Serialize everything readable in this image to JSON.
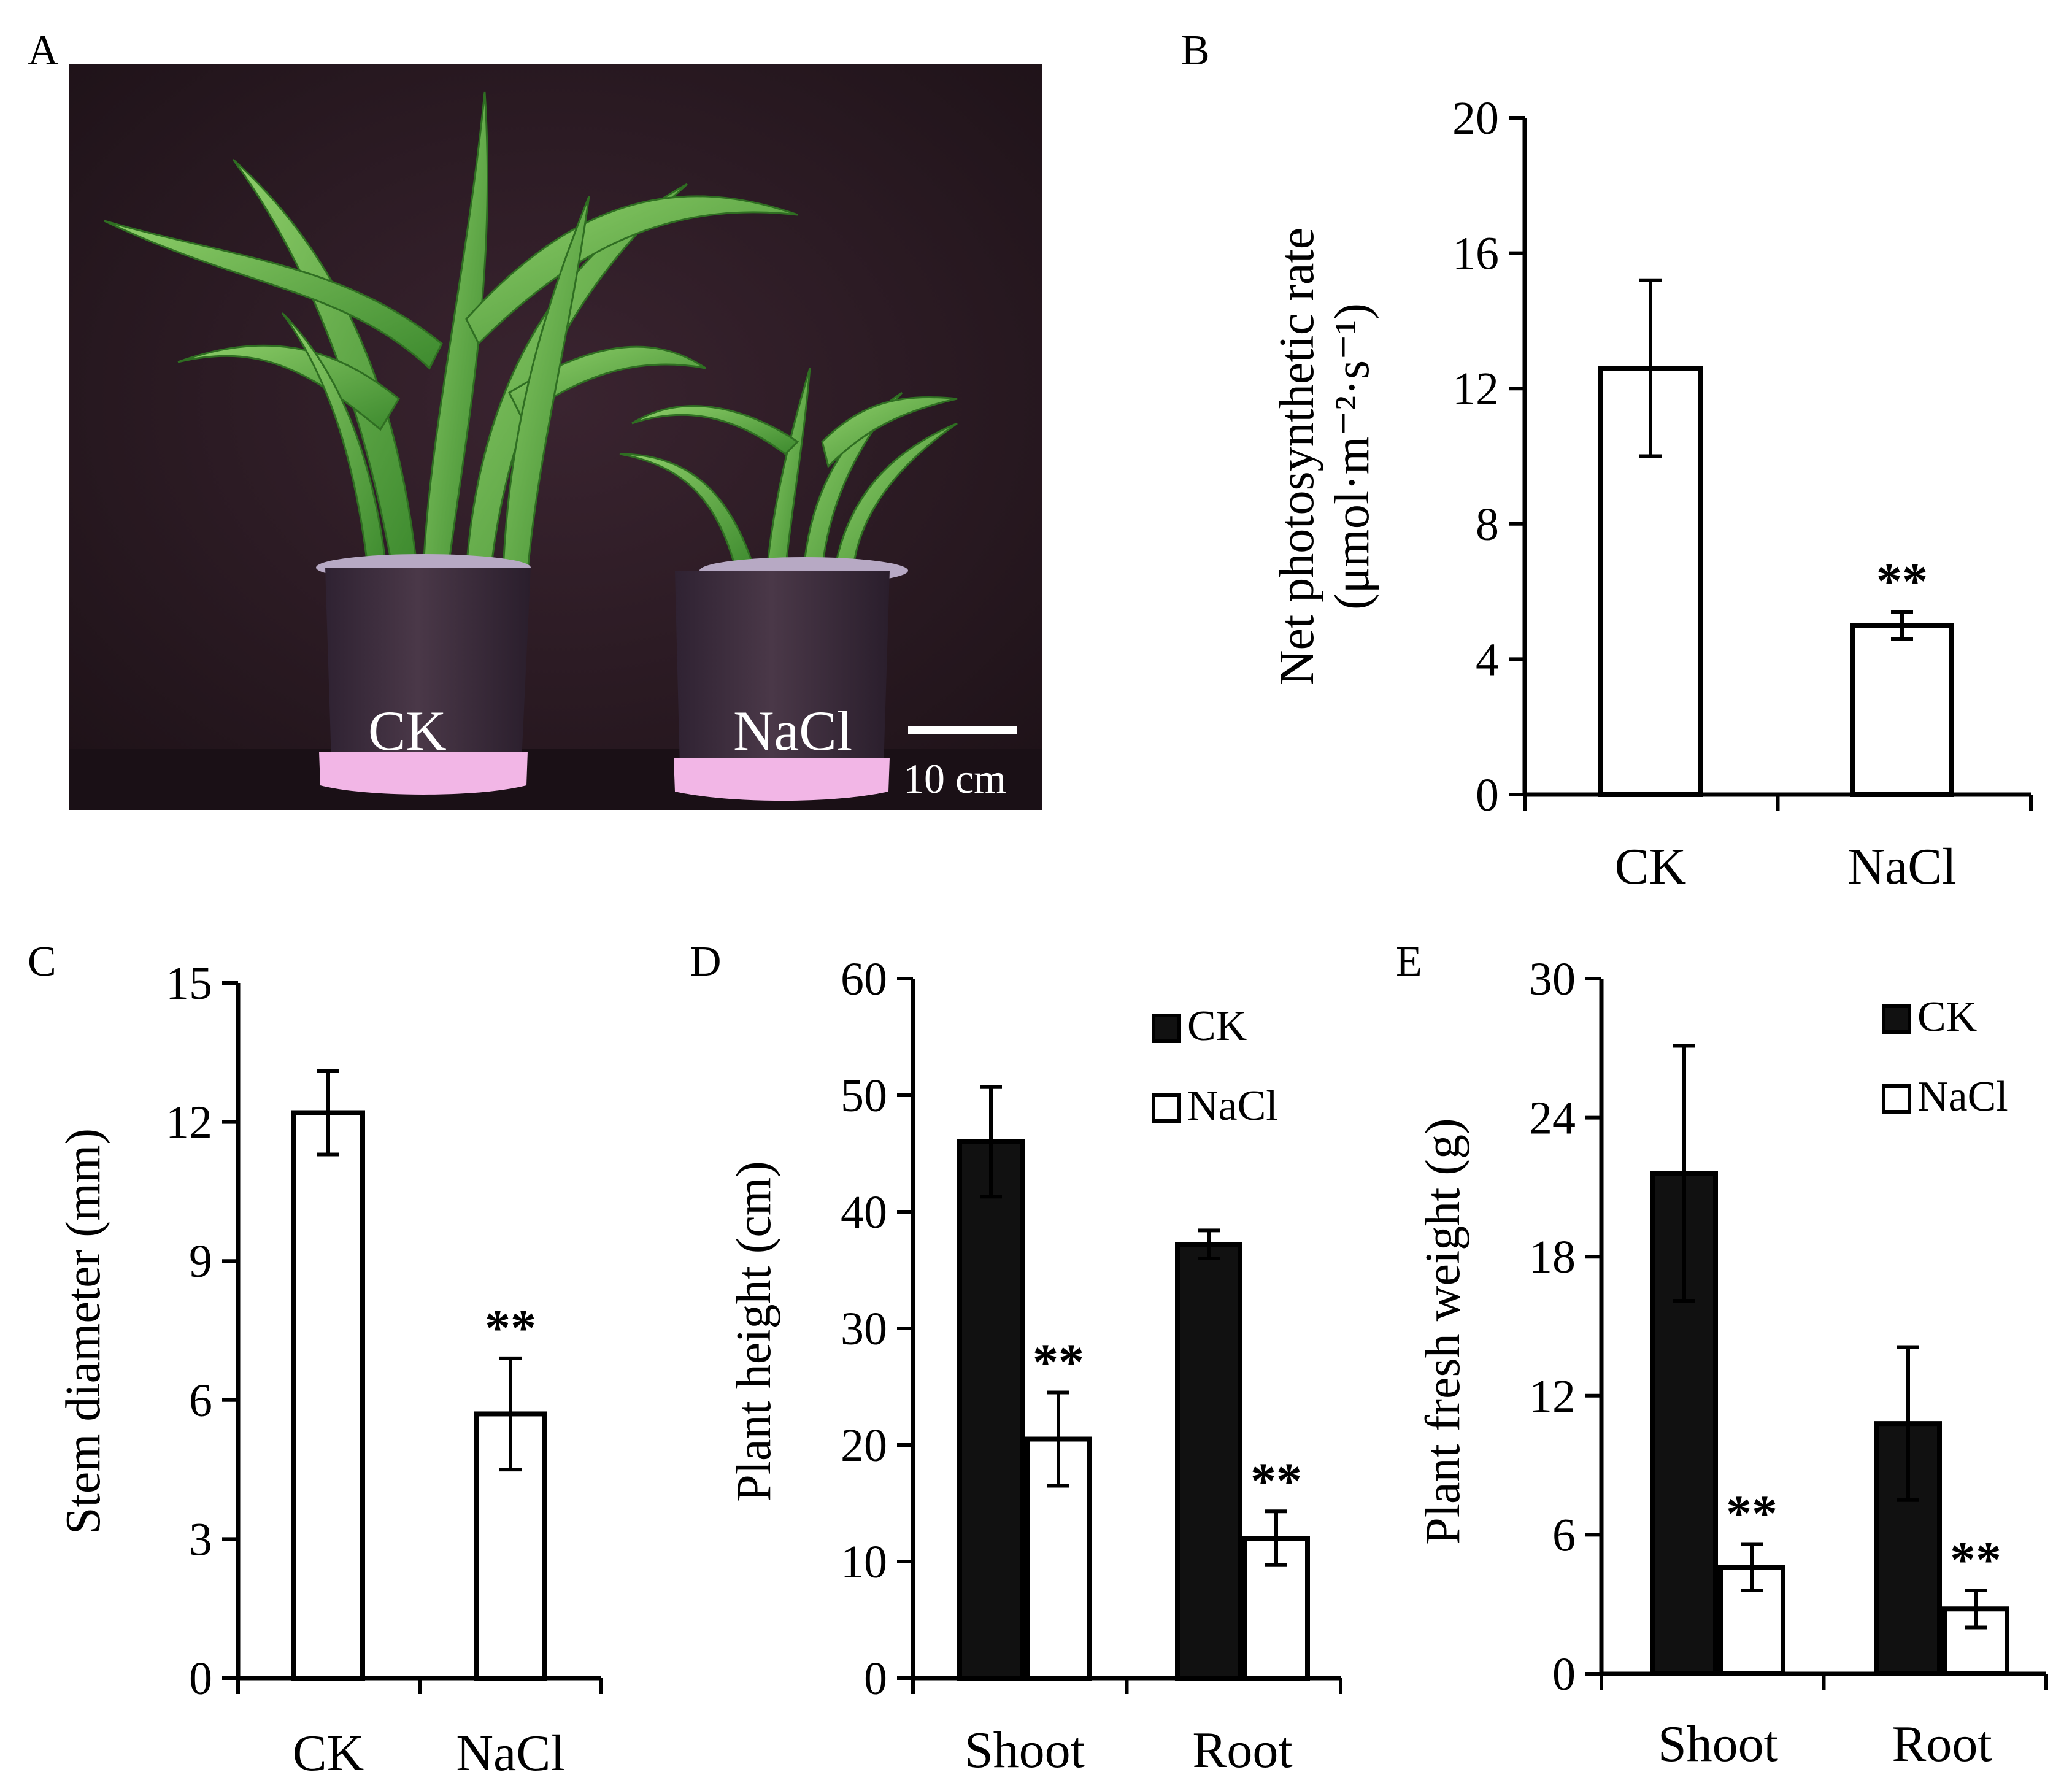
{
  "figure": {
    "panel_labels": [
      "A",
      "B",
      "C",
      "D",
      "E"
    ]
  },
  "photo": {
    "label_ck": "CK",
    "label_nacl": "NaCl",
    "scale_bar": "10 cm"
  },
  "chart_data": [
    {
      "panel": "B",
      "type": "bar",
      "ylabel_line1": "Net photosynthetic rate",
      "ylabel_line2": "(μmol·m⁻²·s⁻¹)",
      "categories": [
        "CK",
        "NaCl"
      ],
      "series": [
        {
          "name": "value",
          "values": [
            12.6,
            5.0
          ],
          "errors": [
            2.6,
            0.4
          ]
        }
      ],
      "significance": [
        "",
        "**"
      ],
      "ylim": [
        0,
        20
      ],
      "yticks": [
        "0",
        "4",
        "8",
        "12",
        "16",
        "20"
      ],
      "legend": []
    },
    {
      "panel": "C",
      "type": "bar",
      "ylabel_line1": "Stem diameter (mm)",
      "categories": [
        "CK",
        "NaCl"
      ],
      "series": [
        {
          "name": "value",
          "values": [
            12.2,
            5.7
          ],
          "errors": [
            0.9,
            1.2
          ]
        }
      ],
      "significance": [
        "",
        "**"
      ],
      "ylim": [
        0,
        15
      ],
      "yticks": [
        "0",
        "3",
        "6",
        "9",
        "12",
        "15"
      ],
      "legend": []
    },
    {
      "panel": "D",
      "type": "bar",
      "ylabel_line1": "Plant height (cm)",
      "categories": [
        "Shoot",
        "Root"
      ],
      "series": [
        {
          "name": "CK",
          "fill": "#111111",
          "values": [
            46.0,
            37.2
          ],
          "errors": [
            4.7,
            1.2
          ],
          "significance": [
            "",
            ""
          ]
        },
        {
          "name": "NaCl",
          "fill": "#ffffff",
          "values": [
            20.5,
            12.0
          ],
          "errors": [
            4.0,
            2.3
          ],
          "significance": [
            "**",
            "**"
          ]
        }
      ],
      "ylim": [
        0,
        60
      ],
      "yticks": [
        "0",
        "10",
        "20",
        "30",
        "40",
        "50",
        "60"
      ],
      "legend": [
        "CK",
        "NaCl"
      ]
    },
    {
      "panel": "E",
      "type": "bar",
      "ylabel_line1": "Plant fresh weight (g)",
      "categories": [
        "Shoot",
        "Root"
      ],
      "series": [
        {
          "name": "CK",
          "fill": "#111111",
          "values": [
            21.6,
            10.8
          ],
          "errors": [
            5.5,
            3.3
          ],
          "significance": [
            "",
            ""
          ]
        },
        {
          "name": "NaCl",
          "fill": "#ffffff",
          "values": [
            4.6,
            2.8
          ],
          "errors": [
            1.0,
            0.8
          ],
          "significance": [
            "**",
            "**"
          ]
        }
      ],
      "ylim": [
        0,
        30
      ],
      "yticks": [
        "0",
        "6",
        "12",
        "18",
        "24",
        "30"
      ],
      "legend": [
        "CK",
        "NaCl"
      ]
    }
  ]
}
